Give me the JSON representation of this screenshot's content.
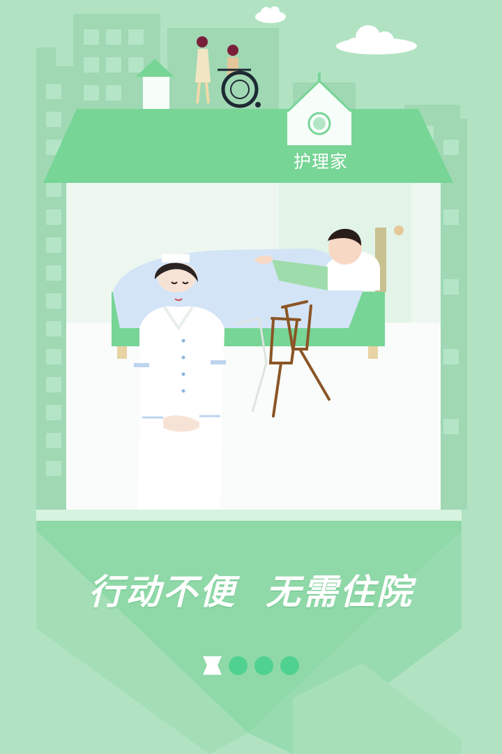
{
  "app": {
    "logo_text": "护理家"
  },
  "banner": {
    "slogan_part1": "行动不便",
    "slogan_part2": "无需住院"
  },
  "pager": {
    "total": 4,
    "active_index": 0
  },
  "colors": {
    "background": "#b1e3c3",
    "roof": "#77d596",
    "accent_dot": "#4fd190",
    "bed_blanket": "#d4e4f7",
    "crutch": "#8a5526"
  },
  "icons": [
    "cloud-icon",
    "home-logo-icon",
    "crutches-icon",
    "wheelchair-icon"
  ]
}
